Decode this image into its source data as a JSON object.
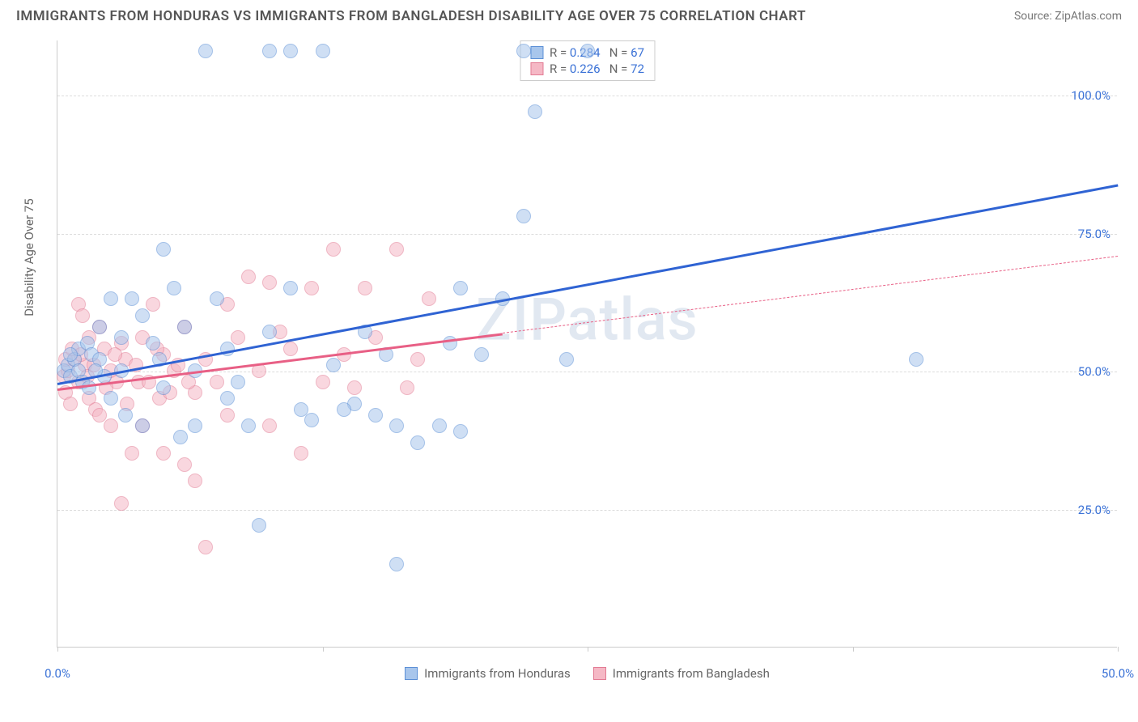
{
  "header": {
    "title": "IMMIGRANTS FROM HONDURAS VS IMMIGRANTS FROM BANGLADESH DISABILITY AGE OVER 75 CORRELATION CHART",
    "source_label": "Source: ",
    "source_name": "ZipAtlas.com"
  },
  "chart": {
    "type": "scatter",
    "xlim": [
      0,
      50
    ],
    "ylim": [
      0,
      110
    ],
    "x_ticks": [
      0,
      12.5,
      25,
      37.5,
      50
    ],
    "x_tick_labels": {
      "0": "0.0%",
      "50": "50.0%"
    },
    "y_ticks": [
      25,
      50,
      75,
      100
    ],
    "y_tick_labels": {
      "25": "25.0%",
      "50": "50.0%",
      "75": "75.0%",
      "100": "100.0%"
    },
    "y_axis_label": "Disability Age Over 75",
    "y_tick_color": "#3b72d6",
    "x_tick_color": "#3b72d6",
    "grid_color": "#dddddd",
    "axis_color": "#cccccc",
    "background_color": "#ffffff",
    "watermark": "ZIPatlas",
    "series": {
      "honduras": {
        "label": "Immigrants from Honduras",
        "color_fill": "#a8c6ec",
        "color_stroke": "#5b8fd6",
        "marker_size": 18,
        "R": "0.284",
        "N": "67",
        "trend": {
          "x1": 0,
          "y1": 48,
          "x2": 50,
          "y2": 84,
          "color": "#2f63d3",
          "width": 2.5,
          "solid_until_x": 50
        },
        "points": [
          [
            0.3,
            50
          ],
          [
            0.5,
            51
          ],
          [
            0.6,
            49
          ],
          [
            0.8,
            52
          ],
          [
            1.0,
            50
          ],
          [
            1.0,
            54
          ],
          [
            1.2,
            48
          ],
          [
            1.4,
            55
          ],
          [
            1.5,
            47
          ],
          [
            1.6,
            53
          ],
          [
            2.0,
            52
          ],
          [
            2.0,
            58
          ],
          [
            2.2,
            49
          ],
          [
            2.5,
            63
          ],
          [
            2.5,
            45
          ],
          [
            3.0,
            56
          ],
          [
            3.0,
            50
          ],
          [
            3.2,
            42
          ],
          [
            3.5,
            63
          ],
          [
            4.0,
            60
          ],
          [
            4.0,
            40
          ],
          [
            4.5,
            55
          ],
          [
            5.0,
            72
          ],
          [
            5.0,
            47
          ],
          [
            5.5,
            65
          ],
          [
            5.8,
            38
          ],
          [
            6.0,
            58
          ],
          [
            6.5,
            50
          ],
          [
            7.0,
            108
          ],
          [
            7.5,
            63
          ],
          [
            8.0,
            45
          ],
          [
            8.0,
            54
          ],
          [
            8.5,
            48
          ],
          [
            9.0,
            40
          ],
          [
            9.5,
            22
          ],
          [
            10.0,
            57
          ],
          [
            10.0,
            108
          ],
          [
            11.0,
            108
          ],
          [
            11.0,
            65
          ],
          [
            11.5,
            43
          ],
          [
            12.0,
            41
          ],
          [
            12.5,
            108
          ],
          [
            13.0,
            51
          ],
          [
            14.0,
            44
          ],
          [
            14.5,
            57
          ],
          [
            15.0,
            42
          ],
          [
            15.5,
            53
          ],
          [
            16.0,
            40
          ],
          [
            17.0,
            37
          ],
          [
            18.0,
            40
          ],
          [
            18.5,
            55
          ],
          [
            19.0,
            65
          ],
          [
            20.0,
            53
          ],
          [
            21.0,
            63
          ],
          [
            22.0,
            108
          ],
          [
            22.0,
            78
          ],
          [
            22.5,
            97
          ],
          [
            24.0,
            52
          ],
          [
            25.0,
            108
          ],
          [
            16.0,
            15
          ],
          [
            19.0,
            39
          ],
          [
            6.5,
            40
          ],
          [
            4.8,
            52
          ],
          [
            1.8,
            50
          ],
          [
            0.6,
            53
          ],
          [
            40.5,
            52
          ],
          [
            13.5,
            43
          ]
        ]
      },
      "bangladesh": {
        "label": "Immigrants from Bangladesh",
        "color_fill": "#f5b8c5",
        "color_stroke": "#e27a93",
        "marker_size": 18,
        "R": "0.226",
        "N": "72",
        "trend": {
          "x1": 0,
          "y1": 47,
          "x2": 50,
          "y2": 71,
          "color": "#e85f85",
          "width": 2.5,
          "solid_until_x": 21
        },
        "points": [
          [
            0.3,
            49
          ],
          [
            0.4,
            46
          ],
          [
            0.5,
            50
          ],
          [
            0.6,
            44
          ],
          [
            0.8,
            52
          ],
          [
            1.0,
            48
          ],
          [
            1.0,
            62
          ],
          [
            1.2,
            60
          ],
          [
            1.3,
            51
          ],
          [
            1.5,
            56
          ],
          [
            1.5,
            45
          ],
          [
            1.8,
            43
          ],
          [
            2.0,
            58
          ],
          [
            2.0,
            42
          ],
          [
            2.2,
            54
          ],
          [
            2.5,
            50
          ],
          [
            2.5,
            40
          ],
          [
            2.8,
            48
          ],
          [
            3.0,
            55
          ],
          [
            3.0,
            26
          ],
          [
            3.2,
            52
          ],
          [
            3.5,
            35
          ],
          [
            3.8,
            48
          ],
          [
            4.0,
            56
          ],
          [
            4.0,
            40
          ],
          [
            4.5,
            62
          ],
          [
            4.8,
            45
          ],
          [
            5.0,
            53
          ],
          [
            5.0,
            35
          ],
          [
            5.5,
            50
          ],
          [
            6.0,
            58
          ],
          [
            6.0,
            33
          ],
          [
            6.5,
            46
          ],
          [
            6.5,
            30
          ],
          [
            7.0,
            52
          ],
          [
            7.0,
            18
          ],
          [
            7.5,
            48
          ],
          [
            8.0,
            62
          ],
          [
            8.0,
            42
          ],
          [
            8.5,
            56
          ],
          [
            9.0,
            67
          ],
          [
            9.5,
            50
          ],
          [
            10.0,
            66
          ],
          [
            10.0,
            40
          ],
          [
            10.5,
            57
          ],
          [
            11.0,
            54
          ],
          [
            11.5,
            35
          ],
          [
            12.0,
            65
          ],
          [
            12.5,
            48
          ],
          [
            13.0,
            72
          ],
          [
            13.5,
            53
          ],
          [
            14.0,
            47
          ],
          [
            14.5,
            65
          ],
          [
            15.0,
            56
          ],
          [
            16.0,
            72
          ],
          [
            16.5,
            47
          ],
          [
            17.0,
            52
          ],
          [
            17.5,
            63
          ],
          [
            0.4,
            52
          ],
          [
            0.7,
            54
          ],
          [
            1.1,
            53
          ],
          [
            1.4,
            49
          ],
          [
            1.7,
            51
          ],
          [
            2.3,
            47
          ],
          [
            2.7,
            53
          ],
          [
            3.3,
            44
          ],
          [
            3.7,
            51
          ],
          [
            4.3,
            48
          ],
          [
            4.7,
            54
          ],
          [
            5.3,
            46
          ],
          [
            5.7,
            51
          ],
          [
            6.2,
            48
          ]
        ]
      }
    },
    "legend_top": {
      "rows": [
        {
          "swatch": "honduras",
          "text_prefix": "R = ",
          "r": "0.284",
          "mid": "   N = ",
          "n": "67"
        },
        {
          "swatch": "bangladesh",
          "text_prefix": "R = ",
          "r": "0.226",
          "mid": "   N = ",
          "n": "72"
        }
      ]
    }
  }
}
